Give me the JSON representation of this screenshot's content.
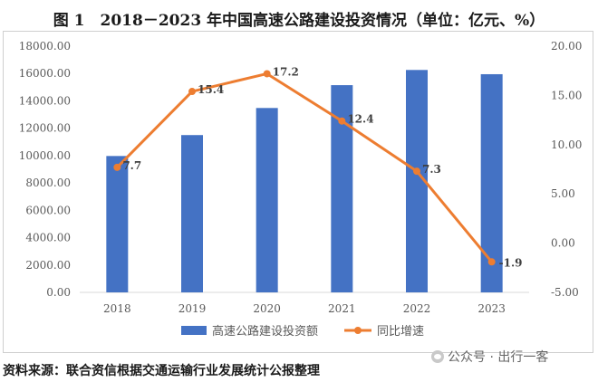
{
  "title": "图 1　2018－2023 年中国高速公路建设投资情况（单位：亿元、%）",
  "source": "资料来源：联合资信根据交通运输行业发展统计公报整理",
  "watermark": "公众号 · 出行一客",
  "colors": {
    "bar": "#4472C4",
    "line": "#ED7D31",
    "grid": "#d9d9d9",
    "axis_text": "#595959",
    "label_text": "#404040"
  },
  "chart_data": {
    "type": "bar",
    "categories": [
      "2018",
      "2019",
      "2020",
      "2021",
      "2022",
      "2023"
    ],
    "series": [
      {
        "name": "高速公路建设投资额",
        "type": "bar",
        "axis": "left",
        "values": [
          9970,
          11500,
          13480,
          15150,
          16260,
          15950
        ]
      },
      {
        "name": "同比增速",
        "type": "line",
        "axis": "right",
        "values": [
          7.7,
          15.4,
          17.2,
          12.4,
          7.3,
          -1.9
        ],
        "labels": [
          "7.7",
          "15.4",
          "17.2",
          "12.4",
          "7.3",
          "-1.9"
        ]
      }
    ],
    "y_left": {
      "min": 0,
      "max": 18000,
      "step": 2000,
      "tick_labels": [
        "0.00",
        "2000.00",
        "4000.00",
        "6000.00",
        "8000.00",
        "10000.00",
        "12000.00",
        "14000.00",
        "16000.00",
        "18000.00"
      ]
    },
    "y_right": {
      "min": -5,
      "max": 20,
      "step": 5,
      "tick_labels": [
        "-5.00",
        "0.00",
        "5.00",
        "10.00",
        "15.00",
        "20.00"
      ]
    },
    "grid": false,
    "legend": "bottom"
  }
}
